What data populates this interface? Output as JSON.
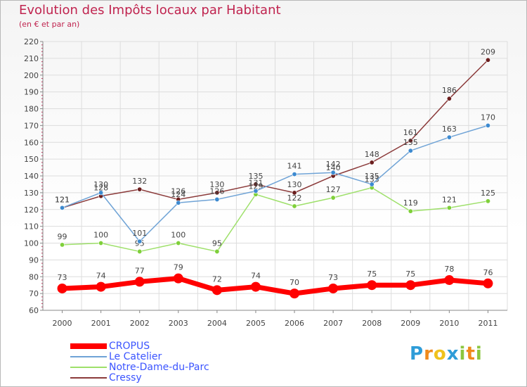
{
  "header": {
    "title": "Evolution des Impôts locaux par Habitant",
    "subtitle": "(en € et par an)"
  },
  "logo": {
    "text": "Proxiti",
    "letters": [
      {
        "ch": "P",
        "color": "#2e9cd8"
      },
      {
        "ch": "r",
        "color": "#f08a1c"
      },
      {
        "ch": "o",
        "color": "#f0c21c"
      },
      {
        "ch": "x",
        "color": "#2e9cd8"
      },
      {
        "ch": "i",
        "color": "#8cc63f"
      },
      {
        "ch": "t",
        "color": "#f08a1c"
      },
      {
        "ch": "i",
        "color": "#8cc63f"
      }
    ]
  },
  "chart_data": {
    "type": "line",
    "title": "Evolution des Impôts locaux par Habitant",
    "subtitle": "(en € et par an)",
    "xlabel": "",
    "ylabel": "",
    "categories": [
      "2000",
      "2001",
      "2002",
      "2003",
      "2004",
      "2005",
      "2006",
      "2007",
      "2008",
      "2009",
      "2010",
      "2011"
    ],
    "ylim": [
      60,
      220
    ],
    "yticks": [
      60,
      70,
      80,
      90,
      100,
      110,
      120,
      130,
      140,
      150,
      160,
      170,
      180,
      190,
      200,
      210,
      220
    ],
    "grid": true,
    "legend_position": "bottom-left",
    "series": [
      {
        "name": "CROPUS",
        "color": "#ff0000",
        "marker_color": "#ff0000",
        "values": [
          73,
          74,
          77,
          79,
          72,
          74,
          70,
          73,
          75,
          75,
          78,
          76
        ],
        "labels": [
          "73",
          "74",
          "77",
          "79",
          "72",
          "74",
          "70",
          "73",
          "75",
          "75",
          "78",
          "76"
        ]
      },
      {
        "name": "Le Catelier",
        "color": "#6fa3d6",
        "marker_color": "#3d8ad0",
        "values": [
          121,
          130,
          101,
          124,
          126,
          131,
          141,
          142,
          135,
          155,
          163,
          170
        ],
        "labels": [
          "121",
          "130",
          "101",
          "124",
          "126",
          "131",
          "141",
          "142",
          "135",
          "155",
          "163",
          "170"
        ]
      },
      {
        "name": "Notre-Dame-du-Parc",
        "color": "#9ee06a",
        "marker_color": "#7fd03a",
        "values": [
          99,
          100,
          95,
          100,
          95,
          129,
          122,
          127,
          133,
          119,
          121,
          125
        ],
        "labels": [
          "99",
          "100",
          "95",
          "100",
          "95",
          "129",
          "122",
          "127",
          "133",
          "119",
          "121",
          "125"
        ]
      },
      {
        "name": "Cressy",
        "color": "#8b3a3a",
        "marker_color": "#6b1e1e",
        "values": [
          121,
          128,
          132,
          126,
          130,
          135,
          130,
          140,
          148,
          161,
          186,
          209
        ],
        "labels": [
          "121",
          "128",
          "132",
          "126",
          "130",
          "135",
          "130",
          "140",
          "148",
          "161",
          "186",
          "209"
        ]
      }
    ]
  }
}
